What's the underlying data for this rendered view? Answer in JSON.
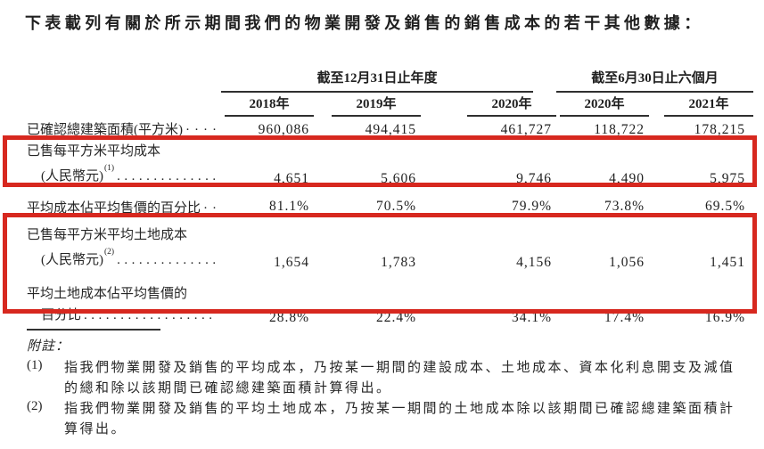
{
  "title": "下表載列有關於所示期間我們的物業開發及銷售的銷售成本的若干其他數據：",
  "colors": {
    "highlight_red": "#d7281f",
    "rule_line": "#2f2f2f",
    "text": "#232323",
    "background": "#ffffff"
  },
  "table": {
    "col_groups": [
      {
        "label": "截至12月31日止年度",
        "years": [
          "2018年",
          "2019年",
          "2020年"
        ]
      },
      {
        "label": "截至6月30日止六個月",
        "years": [
          "2020年",
          "2021年"
        ]
      }
    ],
    "rows": [
      {
        "label": "已確認總建築面積(平方米)",
        "leader": "····",
        "values": [
          "960,086",
          "494,415",
          "461,727",
          "118,722",
          "178,215"
        ],
        "highlighted": false
      },
      {
        "line1": "已售每平方米平均成本",
        "line2": "(人民幣元)",
        "sup": "(1)",
        "leader": "..............",
        "values": [
          "4,651",
          "5,606",
          "9,746",
          "4,490",
          "5,975"
        ],
        "highlighted": true
      },
      {
        "label": "平均成本佔平均售價的百分比",
        "leader": "··",
        "values": [
          "81.1%",
          "70.5%",
          "79.9%",
          "73.8%",
          "69.5%"
        ],
        "highlighted": false
      },
      {
        "line1": "已售每平方米平均土地成本",
        "line2": "(人民幣元)",
        "sup": "(2)",
        "leader": "..............",
        "values": [
          "1,654",
          "1,783",
          "4,156",
          "1,056",
          "1,451"
        ],
        "highlighted": true
      },
      {
        "line1": "平均土地成本佔平均售價的",
        "line2": "百分比",
        "leader": "..................",
        "values": [
          "28.8%",
          "22.4%",
          "34.1%",
          "17.4%",
          "16.9%"
        ],
        "highlighted": true
      }
    ]
  },
  "footnotes": {
    "heading": "附註：",
    "items": [
      {
        "num": "(1)",
        "lines": [
          "指我們物業開發及銷售的平均成本，乃按某一期間的建設成本、土地成本、資本化利息開支及減值",
          "的總和除以該期間已確認總建築面積計算得出。"
        ]
      },
      {
        "num": "(2)",
        "lines": [
          "指我們物業開發及銷售的平均土地成本，乃按某一期間的土地成本除以該期間已確認總建築面積計",
          "算得出。"
        ]
      }
    ]
  }
}
